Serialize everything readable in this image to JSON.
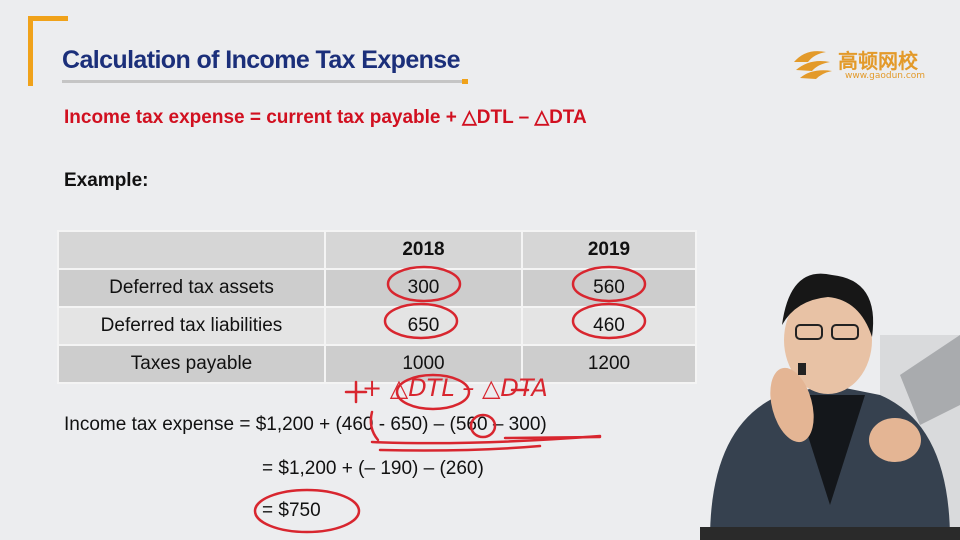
{
  "slide": {
    "title": "Calculation of Income Tax Expense",
    "formula": "Income tax expense = current tax payable + △DTL – △DTA",
    "example_label": "Example:"
  },
  "logo": {
    "name": "高顿网校",
    "url": "www.gaodun.com",
    "color": "#e39a2a"
  },
  "table": {
    "headers": [
      "",
      "2018",
      "2019"
    ],
    "rows": [
      {
        "label": "Deferred tax assets",
        "v2018": "300",
        "v2019": "560"
      },
      {
        "label": "Deferred tax liabilities",
        "v2018": "650",
        "v2019": "460"
      },
      {
        "label": "Taxes payable",
        "v2018": "1000",
        "v2019": "1200"
      }
    ]
  },
  "calculation": {
    "line1": "Income tax expense = $1,200 + (460 - 650) – (560 – 300)",
    "line2": "= $1,200 + (– 190) – (260)",
    "line3": "= $750"
  },
  "annotations": {
    "handwritten": "+ △DTL – △DTA",
    "ink_color": "#d8262f"
  },
  "colors": {
    "accent": "#f0a21a",
    "title": "#1b2f7a",
    "formula": "#d11020"
  }
}
